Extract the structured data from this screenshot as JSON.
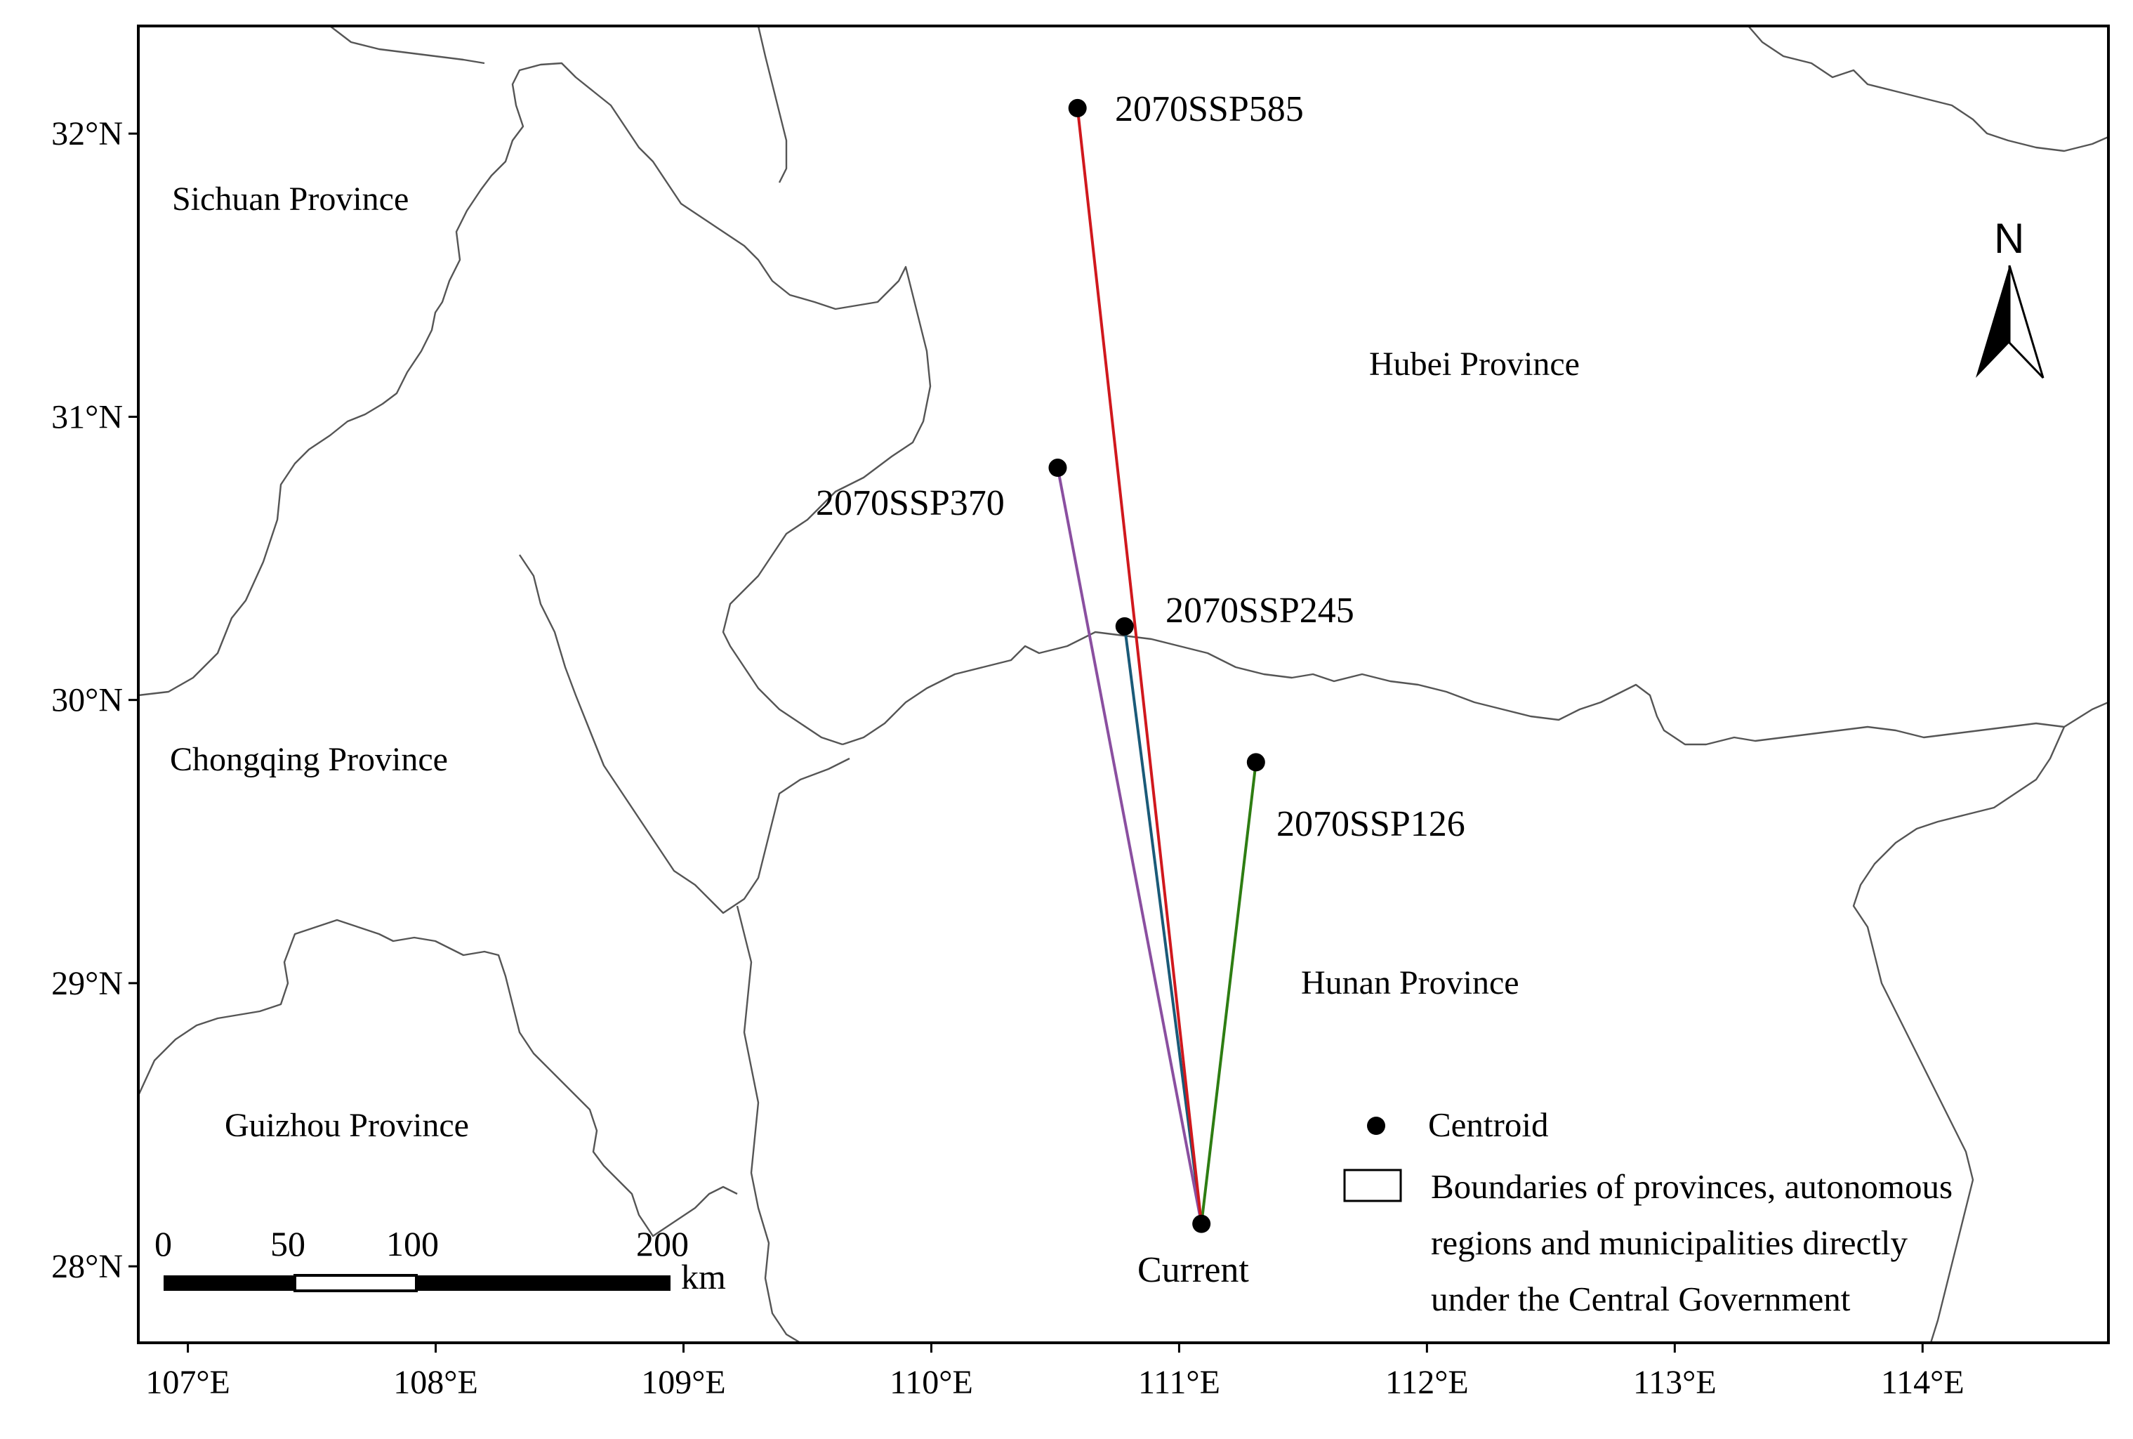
{
  "map": {
    "x_axis": {
      "unit": "°E",
      "ticks": [
        {
          "value": 107,
          "label": "107°E"
        },
        {
          "value": 108,
          "label": "108°E"
        },
        {
          "value": 109,
          "label": "109°E"
        },
        {
          "value": 110,
          "label": "110°E"
        },
        {
          "value": 111,
          "label": "111°E"
        },
        {
          "value": 112,
          "label": "112°E"
        },
        {
          "value": 113,
          "label": "113°E"
        },
        {
          "value": 114,
          "label": "114°E"
        }
      ],
      "range": [
        106.8,
        114.75
      ]
    },
    "y_axis": {
      "unit": "°N",
      "ticks": [
        {
          "value": 28,
          "label": "28°N"
        },
        {
          "value": 29,
          "label": "29°N"
        },
        {
          "value": 30,
          "label": "30°N"
        },
        {
          "value": 31,
          "label": "31°N"
        },
        {
          "value": 32,
          "label": "32°N"
        }
      ],
      "range": [
        27.73,
        32.38
      ]
    },
    "provinces": [
      {
        "name": "Sichuan Province"
      },
      {
        "name": "Hubei Province"
      },
      {
        "name": "Chongqing Province"
      },
      {
        "name": "Hunan Province"
      },
      {
        "name": "Guizhou Province"
      }
    ],
    "centroids": [
      {
        "label": "Current",
        "lon": 111.09,
        "lat": 28.15
      },
      {
        "label": "2070SSP126",
        "lon": 111.31,
        "lat": 29.78,
        "line_color": "#2e7d12"
      },
      {
        "label": "2070SSP245",
        "lon": 110.78,
        "lat": 30.26,
        "line_color": "#1a5a78"
      },
      {
        "label": "2070SSP370",
        "lon": 110.51,
        "lat": 30.82,
        "line_color": "#8a4fa0"
      },
      {
        "label": "2070SSP585",
        "lon": 110.59,
        "lat": 32.09,
        "line_color": "#d0181d"
      }
    ],
    "legend": {
      "centroid_label": "Centroid",
      "boundary_label_lines": [
        "Boundaries of provinces, autonomous",
        "regions and municipalities directly",
        "under the Central Government"
      ]
    },
    "scale_bar": {
      "labels": [
        "0",
        "50",
        "100",
        "200"
      ],
      "unit": "km"
    },
    "north_arrow": {
      "label": "N"
    }
  }
}
